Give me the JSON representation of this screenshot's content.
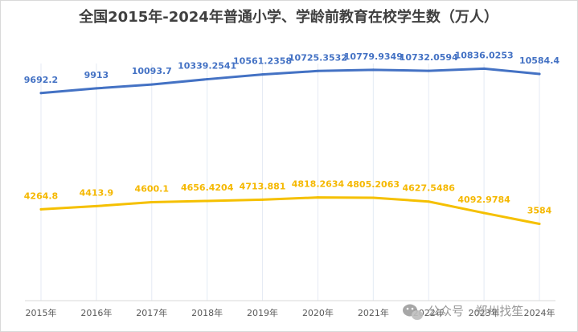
{
  "chart_data": {
    "type": "line",
    "title": "全国2015年-2024年普通小学、学龄前教育在校学生数（万人）",
    "xlabel": "",
    "ylabel": "",
    "categories": [
      "2015年",
      "2016年",
      "2017年",
      "2018年",
      "2019年",
      "2020年",
      "2021年",
      "2022年",
      "2023年",
      "2024年"
    ],
    "series": [
      {
        "values": [
          9692.2,
          9913,
          10093.7,
          10339.2541,
          10561.2358,
          10725.3532,
          10779.9349,
          10732.0594,
          10836.0253,
          10584.4
        ],
        "labels": [
          "9692.2",
          "9913",
          "10093.7",
          "10339.2541",
          "10561.2358",
          "10725.3532",
          "10779.9349",
          "10732.0594",
          "10836.0253",
          "10584.4"
        ],
        "color": "#4472c4"
      },
      {
        "values": [
          4264.8,
          4413.9,
          4600.1,
          4656.4204,
          4713.881,
          4818.2634,
          4805.2063,
          4627.5486,
          4092.9784,
          3584
        ],
        "labels": [
          "4264.8",
          "4413.9",
          "4600.1",
          "4656.4204",
          "4713.881",
          "4818.2634",
          "4805.2063",
          "4627.5486",
          "4092.9784",
          "3584"
        ],
        "color": "#f5c000"
      }
    ],
    "ylim": [
      0,
      12500
    ],
    "grid": "vertical"
  },
  "watermark": {
    "text": "公众号 · 郑州找笙",
    "icon": "wechat-icon"
  }
}
